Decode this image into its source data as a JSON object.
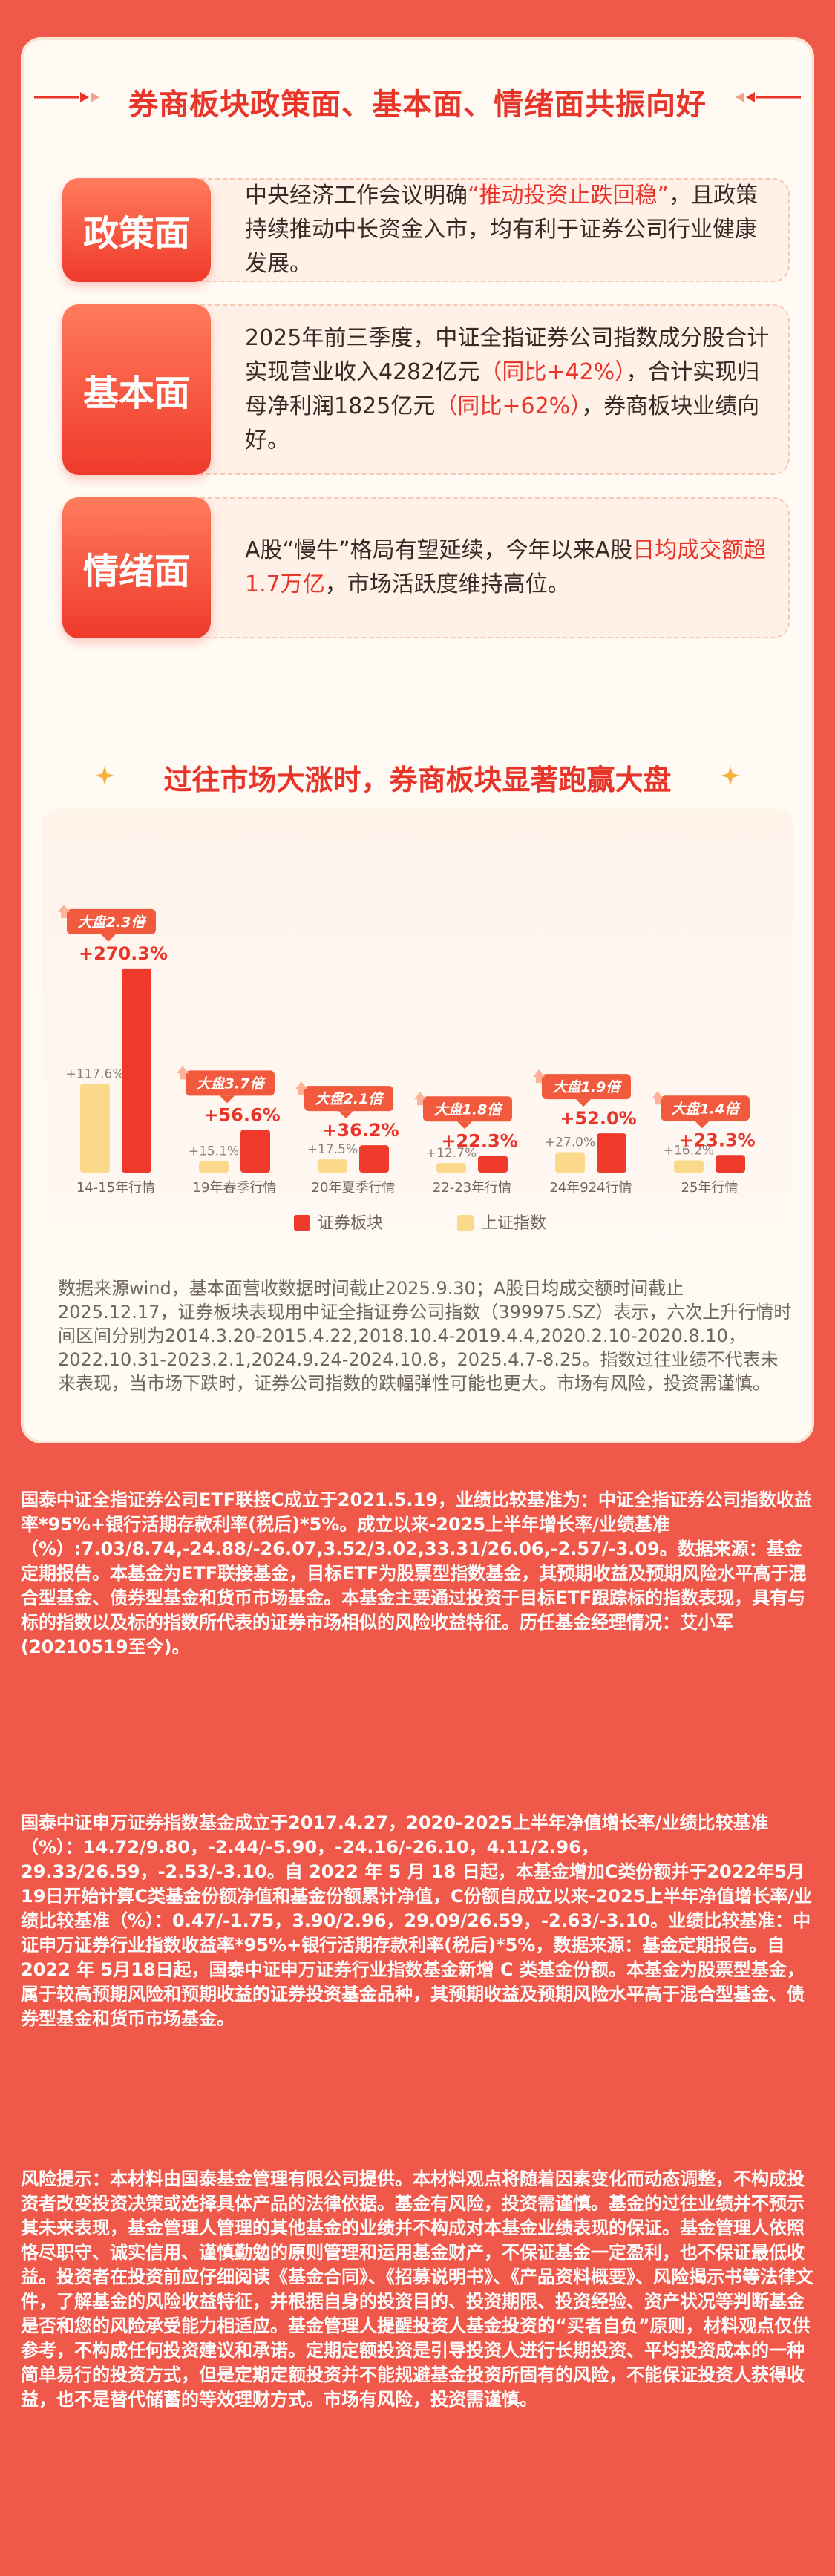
{
  "header": {
    "title": "券商板块政策面、基本面、情绪面共振向好"
  },
  "rows": [
    {
      "label": "政策面",
      "text_parts": [
        {
          "t": "中央经济工作会议明确",
          "hl": false
        },
        {
          "t": "“推动投资止跌回稳”",
          "hl": true
        },
        {
          "t": "，且政策持续推动中长资金入市，均有利于证券公司行业健康发展。",
          "hl": false
        }
      ]
    },
    {
      "label": "基本面",
      "text_parts": [
        {
          "t": "2025年前三季度，中证全指证券公司指数成分股合计实现营业收入4282亿元",
          "hl": false
        },
        {
          "t": "（同比+42%）",
          "hl": true
        },
        {
          "t": "，合计实现归母净利润1825亿元",
          "hl": false
        },
        {
          "t": "（同比+62%）",
          "hl": true
        },
        {
          "t": "，券商板块业绩向好。",
          "hl": false
        }
      ]
    },
    {
      "label": "情绪面",
      "text_parts": [
        {
          "t": "A股“慢牛”格局有望延续，今年以来A股",
          "hl": false
        },
        {
          "t": "日均成交额超1.7万亿",
          "hl": true
        },
        {
          "t": "，市场活跃度维持高位。",
          "hl": false
        }
      ]
    }
  ],
  "section2": {
    "title": "过往市场大涨时，券商板块显著跑赢大盘"
  },
  "chart_data": {
    "type": "bar",
    "categories": [
      "14-15年行情",
      "19年春季行情",
      "20年夏季行情",
      "22-23年行情",
      "24年924行情",
      "25年行情"
    ],
    "series": [
      {
        "name": "上证指数",
        "values": [
          117.6,
          15.1,
          17.5,
          12.7,
          27.0,
          16.2
        ],
        "labels": [
          "+117.6%",
          "+15.1%",
          "+17.5%",
          "+12.7%",
          "+27.0%",
          "+16.2%"
        ]
      },
      {
        "name": "证券板块",
        "values": [
          270.3,
          56.6,
          36.2,
          22.3,
          52.0,
          23.3
        ],
        "labels": [
          "+270.3%",
          "+56.6%",
          "+36.2%",
          "+22.3%",
          "+52.0%",
          "+23.3%"
        ]
      }
    ],
    "badges": [
      "大盘2.3倍",
      "大盘3.7倍",
      "大盘2.1倍",
      "大盘1.8倍",
      "大盘1.9倍",
      "大盘1.4倍"
    ],
    "legend_order": [
      "证券板块",
      "上证指数"
    ],
    "legend_position": "bottom-center",
    "colors": {
      "securities": "#ef3a2b",
      "index": "#fbd98b",
      "badge": "#f25a3d",
      "label": "#e8352a"
    },
    "ylim": [
      0,
      280
    ]
  },
  "notes": "数据来源wind，基本面营收数据时间截止2025.9.30；A股日均成交额时间截止2025.12.17，证券板块表现用中证全指证券公司指数（399975.SZ）表示，六次上升行情时间区间分别为2014.3.20-2015.4.22,2018.10.4-2019.4.4,2020.2.10-2020.8.10，2022.10.31-2023.2.1,2024.9.24-2024.10.8，2025.4.7-8.25。指数过往业绩不代表未来表现，当市场下跌时，证券公司指数的跌幅弹性可能也更大。市场有风险，投资需谨慎。",
  "legal": [
    "国泰中证全指证券公司ETF联接C成立于2021.5.19，业绩比较基准为：中证全指证券公司指数收益率*95%+银行活期存款利率(税后)*5%。成立以来-2025上半年增长率/业绩基准（%）:7.03/8.74,-24.88/-26.07,3.52/3.02,33.31/26.06,-2.57/-3.09。数据来源：基金定期报告。本基金为ETF联接基金，目标ETF为股票型指数基金，其预期收益及预期风险水平高于混合型基金、债券型基金和货币市场基金。本基金主要通过投资于目标ETF跟踪标的指数表现，具有与标的指数以及标的指数所代表的证券市场相似的风险收益特征。历任基金经理情况：艾小军(20210519至今)。",
    "国泰中证申万证券指数基金成立于2017.4.27，2020-2025上半年净值增长率/业绩比较基准（%）：14.72/9.80，-2.44/-5.90，-24.16/-26.10，4.11/2.96，29.33/26.59，-2.53/-3.10。自 2022 年 5 月 18 日起，本基金增加C类份额并于2022年5月19日开始计算C类基金份额净值和基金份额累计净值，C份额自成立以来-2025上半年净值增长率/业绩比较基准（%）：0.47/-1.75，3.90/2.96，29.09/26.59，-2.63/-3.10。业绩比较基准：中证申万证券行业指数收益率*95%+银行活期存款利率(税后)*5%，数据来源：基金定期报告。自 2022 年 5月18日起，国泰中证申万证券行业指数基金新增 C 类基金份额。本基金为股票型基金，属于较高预期风险和预期收益的证券投资基金品种，其预期收益及预期风险水平高于混合型基金、债券型基金和货币市场基金。",
    "风险提示：本材料由国泰基金管理有限公司提供。本材料观点将随着因素变化而动态调整，不构成投资者改变投资决策或选择具体产品的法律依据。基金有风险，投资需谨慎。基金的过往业绩并不预示其未来表现，基金管理人管理的其他基金的业绩并不构成对本基金业绩表现的保证。基金管理人依照恪尽职守、诚实信用、谨慎勤勉的原则管理和运用基金财产，不保证基金一定盈利，也不保证最低收益。投资者在投资前应仔细阅读《基金合同》、《招募说明书》、《产品资料概要》、风险揭示书等法律文件，了解基金的风险收益特征，并根据自身的投资目的、投资期限、投资经验、资产状况等判断基金是否和您的风险承受能力相适应。基金管理人提醒投资人基金投资的“买者自负”原则，材料观点仅供参考，不构成任何投资建议和承诺。定期定额投资是引导投资人进行长期投资、平均投资成本的一种简单易行的投资方式，但是定期定额投资并不能规避基金投资所固有的风险，不能保证投资人获得收益，也不是替代储蓄的等效理财方式。市场有风险，投资需谨慎。"
  ]
}
